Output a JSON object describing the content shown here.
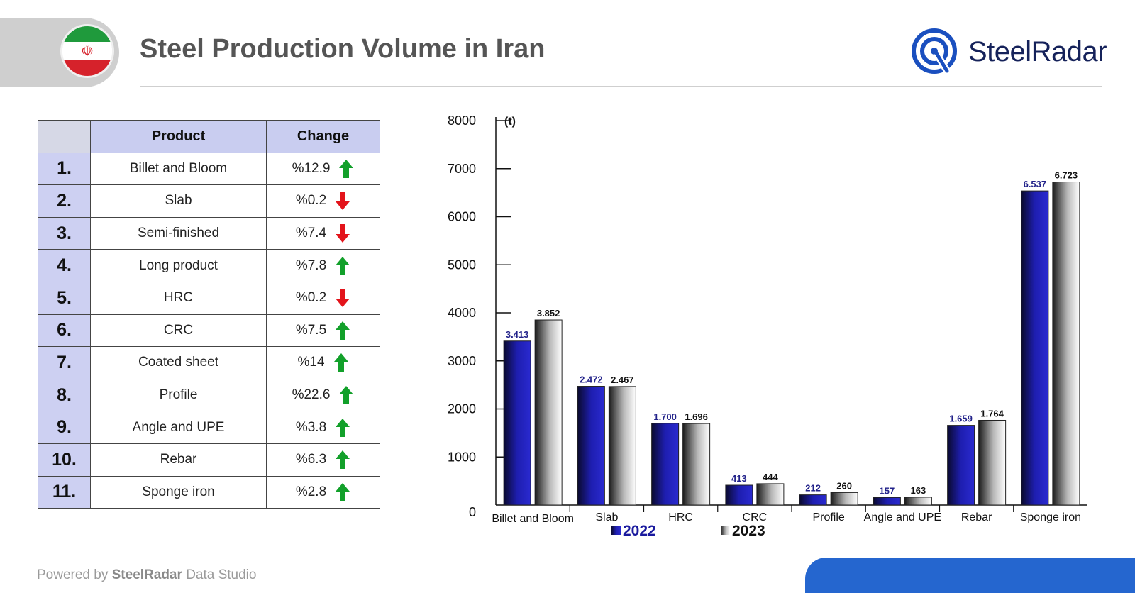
{
  "header": {
    "title": "Steel Production Volume in Iran",
    "brand": "SteelRadar"
  },
  "table": {
    "headers": [
      "Product",
      "Change"
    ],
    "rows": [
      {
        "index": "1.",
        "product": "Billet and Bloom",
        "change": "%12.9",
        "trend": "up"
      },
      {
        "index": "2.",
        "product": "Slab",
        "change": "%0.2",
        "trend": "down"
      },
      {
        "index": "3.",
        "product": "Semi-finished",
        "change": "%7.4",
        "trend": "down"
      },
      {
        "index": "4.",
        "product": "Long product",
        "change": "%7.8",
        "trend": "up"
      },
      {
        "index": "5.",
        "product": "HRC",
        "change": "%0.2",
        "trend": "down"
      },
      {
        "index": "6.",
        "product": "CRC",
        "change": "%7.5",
        "trend": "up"
      },
      {
        "index": "7.",
        "product": "Coated sheet",
        "change": "%14",
        "trend": "up"
      },
      {
        "index": "8.",
        "product": "Profile",
        "change": "%22.6",
        "trend": "up"
      },
      {
        "index": "9.",
        "product": "Angle and UPE",
        "change": "%3.8",
        "trend": "up"
      },
      {
        "index": "10.",
        "product": "Rebar",
        "change": "%6.3",
        "trend": "up"
      },
      {
        "index": "11.",
        "product": "Sponge iron",
        "change": "%2.8",
        "trend": "up"
      }
    ],
    "colors": {
      "up": "#12a02a",
      "down": "#e3141b"
    }
  },
  "chart_data": {
    "type": "bar",
    "unit_label": "(t)",
    "categories": [
      "Billet and Bloom",
      "Slab",
      "HRC",
      "CRC",
      "Profile",
      "Angle and UPE",
      "Rebar",
      "Sponge iron"
    ],
    "series": [
      {
        "name": "2022",
        "values": [
          3413,
          2472,
          1700,
          413,
          212,
          157,
          1659,
          6537
        ],
        "labels": [
          "3.413",
          "2.472",
          "1.700",
          "413",
          "212",
          "157",
          "1.659",
          "6.537"
        ],
        "color": "#1a1a9e"
      },
      {
        "name": "2023",
        "values": [
          3852,
          2467,
          1696,
          444,
          260,
          163,
          1764,
          6723
        ],
        "labels": [
          "3.852",
          "2.467",
          "1.696",
          "444",
          "260",
          "163",
          "1.764",
          "6.723"
        ],
        "color": "#8a8a8a"
      }
    ],
    "ylim": [
      0,
      8000
    ],
    "yticks": [
      0,
      1000,
      2000,
      3000,
      4000,
      5000,
      6000,
      7000,
      8000
    ],
    "legend": "bottom"
  },
  "footer": {
    "prefix": "Powered by",
    "brand": "SteelRadar",
    "suffix": "Data Studio"
  }
}
